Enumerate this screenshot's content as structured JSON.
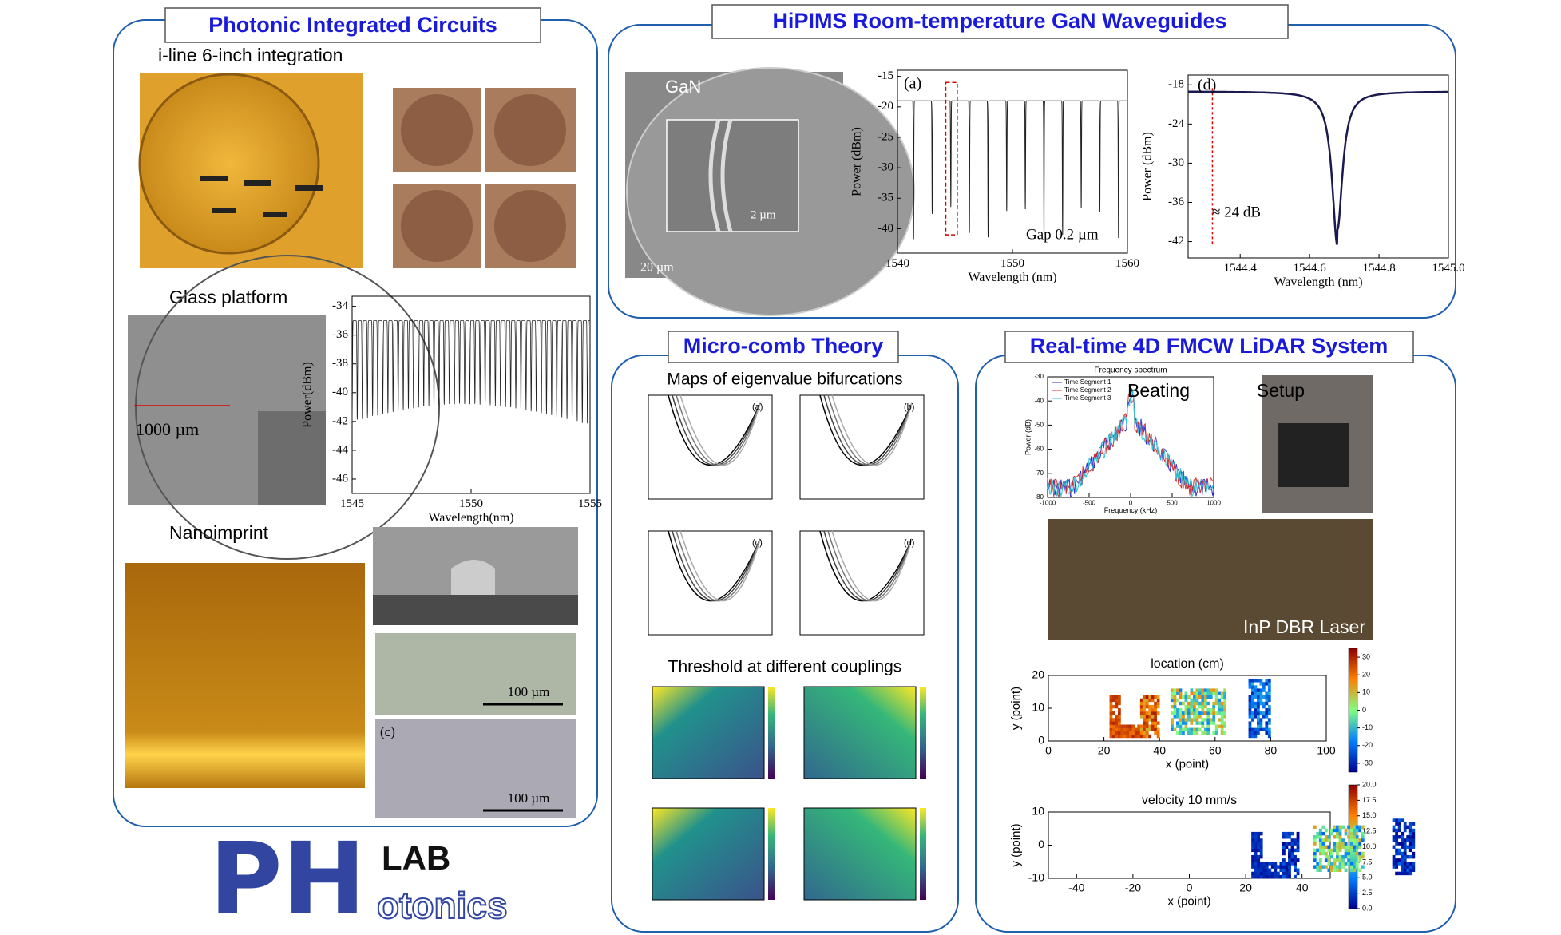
{
  "pic": {
    "title": "Photonic Integrated Circuits",
    "iline": "i-line 6-inch integration",
    "glass": "Glass platform",
    "nano": "Nanoimprint",
    "scale1": "1000 µm",
    "scale2": "100 µm",
    "scale3": "100 µm",
    "panel_c": "(c)",
    "chart": {
      "xlabel": "Wavelength(nm)",
      "ylabel": "Power(dBm)",
      "xlim": [
        1545,
        1555
      ],
      "ylim": [
        -47,
        -33.3
      ],
      "xticks": [
        1545,
        1550,
        1555
      ],
      "yticks": [
        -34,
        -36,
        -38,
        -40,
        -42,
        -44,
        -46
      ]
    }
  },
  "gan": {
    "title": "HiPIMS Room-temperature GaN Waveguides",
    "img_label": "GaN",
    "scale_inset": "2 µm",
    "scale_main": "20 µm",
    "chart_a": {
      "label": "(a)",
      "annotation": "Gap 0.2 µm",
      "xlabel": "Wavelength (nm)",
      "ylabel": "Power (dBm)",
      "xlim": [
        1540,
        1560
      ],
      "ylim": [
        -44,
        -14
      ],
      "xticks": [
        1540,
        1550,
        1560
      ],
      "yticks": [
        -15,
        -20,
        -25,
        -30,
        -35,
        -40
      ]
    },
    "chart_d": {
      "label": "(d)",
      "annotation": "≈ 24 dB",
      "xlabel": "Wavelength (nm)",
      "ylabel": "Power (dBm)",
      "xlim": [
        1544.25,
        1545
      ],
      "ylim": [
        -44.5,
        -16.5
      ],
      "xticks": [
        1544.4,
        1544.6,
        1544.8,
        {
          "value": 1545,
          "label": "1545.0"
        }
      ],
      "yticks": [
        -18,
        -24,
        -30,
        -36,
        -42
      ]
    }
  },
  "comb": {
    "title": "Micro-comb Theory",
    "maps": "Maps of eigenvalue bifurcations",
    "threshold": "Threshold at different couplings",
    "sub_labels": [
      "(a)",
      "(b)",
      "(c)",
      "(d)"
    ]
  },
  "lidar": {
    "title": "Real-time 4D FMCW LiDAR System",
    "beating": "Beating",
    "setup": "Setup",
    "laser": "InP DBR Laser",
    "spectrum": {
      "title": "Frequency spectrum",
      "xlabel": "Frequency (kHz)",
      "ylabel": "Power (dB)",
      "legend": [
        "Time Segment 1",
        "Time Segment 2",
        "Time Segment 3"
      ],
      "xlim": [
        -1000,
        1000
      ],
      "ylim": [
        -80,
        -30
      ],
      "xticks": [
        -1000,
        -500,
        0,
        500,
        1000
      ],
      "yticks": [
        -30,
        -40,
        -50,
        -60,
        -70,
        -80
      ]
    },
    "location": {
      "title": "location (cm)",
      "xlabel": "x (point)",
      "ylabel": "y (point)",
      "xlim": [
        0,
        100
      ],
      "ylim": [
        0,
        20
      ],
      "xticks": [
        0,
        20,
        40,
        60,
        80,
        100
      ],
      "yticks": [
        0,
        10,
        20
      ],
      "cbar_lim": [
        -35,
        35
      ],
      "cbar_ticks": [
        30,
        20,
        10,
        0,
        -10,
        -20,
        -30
      ]
    },
    "velocity": {
      "title": "velocity 10 mm/s",
      "xlabel": "x (point)",
      "ylabel": "y (point)",
      "xlim": [
        -50,
        50
      ],
      "ylim": [
        -10,
        10
      ],
      "xticks": [
        -40,
        -20,
        0,
        20,
        40
      ],
      "yticks": [
        -10,
        0,
        10
      ],
      "cbar_lim": [
        0,
        20
      ],
      "cbar_ticks": [
        {
          "value": 20,
          "label": "20.0"
        },
        {
          "value": 17.5,
          "label": "17.5"
        },
        {
          "value": 15,
          "label": "15.0"
        },
        {
          "value": 12.5,
          "label": "12.5"
        },
        {
          "value": 10,
          "label": "10.0"
        },
        {
          "value": 7.5,
          "label": "7.5"
        },
        {
          "value": 5,
          "label": "5.0"
        },
        {
          "value": 2.5,
          "label": "2.5"
        },
        {
          "value": 0,
          "label": "0.0"
        }
      ]
    }
  },
  "logo": {
    "big": "PH",
    "lab": "LAB",
    "rest": "otonics"
  }
}
